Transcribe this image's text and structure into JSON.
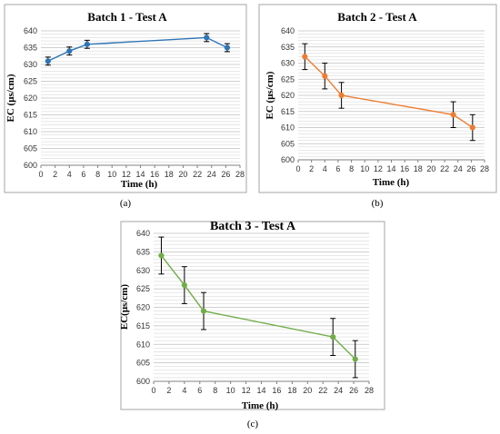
{
  "chart_data": [
    {
      "type": "line",
      "title": "Batch 1 - Test A",
      "xlabel": "Time (h)",
      "ylabel": "EC (μs/cm)",
      "caption": "(a)",
      "color": "#2e75b6",
      "xlim": [
        0,
        28
      ],
      "ylim": [
        600,
        640
      ],
      "xticks": [
        0,
        2,
        4,
        6,
        8,
        10,
        12,
        14,
        16,
        18,
        20,
        22,
        24,
        26,
        28
      ],
      "yticks": [
        600,
        605,
        610,
        615,
        620,
        625,
        630,
        635,
        640
      ],
      "grid": true,
      "series": [
        {
          "x": [
            1,
            4,
            6.5,
            23.3,
            26.2
          ],
          "y": [
            631,
            634,
            636,
            638,
            635
          ],
          "err": [
            1.2,
            1.2,
            1.2,
            1.2,
            1.2
          ]
        }
      ]
    },
    {
      "type": "line",
      "title": "Batch 2 - Test A",
      "xlabel": "Time (h)",
      "ylabel": "EC (μs/cm)",
      "caption": "(b)",
      "color": "#ed7d31",
      "xlim": [
        0,
        28
      ],
      "ylim": [
        600,
        640
      ],
      "xticks": [
        0,
        2,
        4,
        6,
        8,
        10,
        12,
        14,
        16,
        18,
        20,
        22,
        24,
        26,
        28
      ],
      "yticks": [
        600,
        605,
        610,
        615,
        620,
        625,
        630,
        635,
        640
      ],
      "grid": true,
      "series": [
        {
          "x": [
            1,
            4,
            6.5,
            23.3,
            26.2
          ],
          "y": [
            632,
            626,
            620,
            614,
            610
          ],
          "err": [
            4,
            4,
            4,
            4,
            4
          ]
        }
      ]
    },
    {
      "type": "line",
      "title": "Batch 3 - Test A",
      "xlabel": "Time (h)",
      "ylabel": "EC(μs/cm)",
      "caption": "(c)",
      "color": "#70ad47",
      "xlim": [
        0,
        28
      ],
      "ylim": [
        600,
        640
      ],
      "xticks": [
        0,
        2,
        4,
        6,
        8,
        10,
        12,
        14,
        16,
        18,
        20,
        22,
        24,
        26,
        28
      ],
      "yticks": [
        600,
        605,
        610,
        615,
        620,
        625,
        630,
        635,
        640
      ],
      "grid": true,
      "series": [
        {
          "x": [
            1,
            4,
            6.5,
            23.3,
            26.2
          ],
          "y": [
            634,
            626,
            619,
            612,
            606
          ],
          "err": [
            5,
            5,
            5,
            5,
            5
          ]
        }
      ]
    }
  ]
}
